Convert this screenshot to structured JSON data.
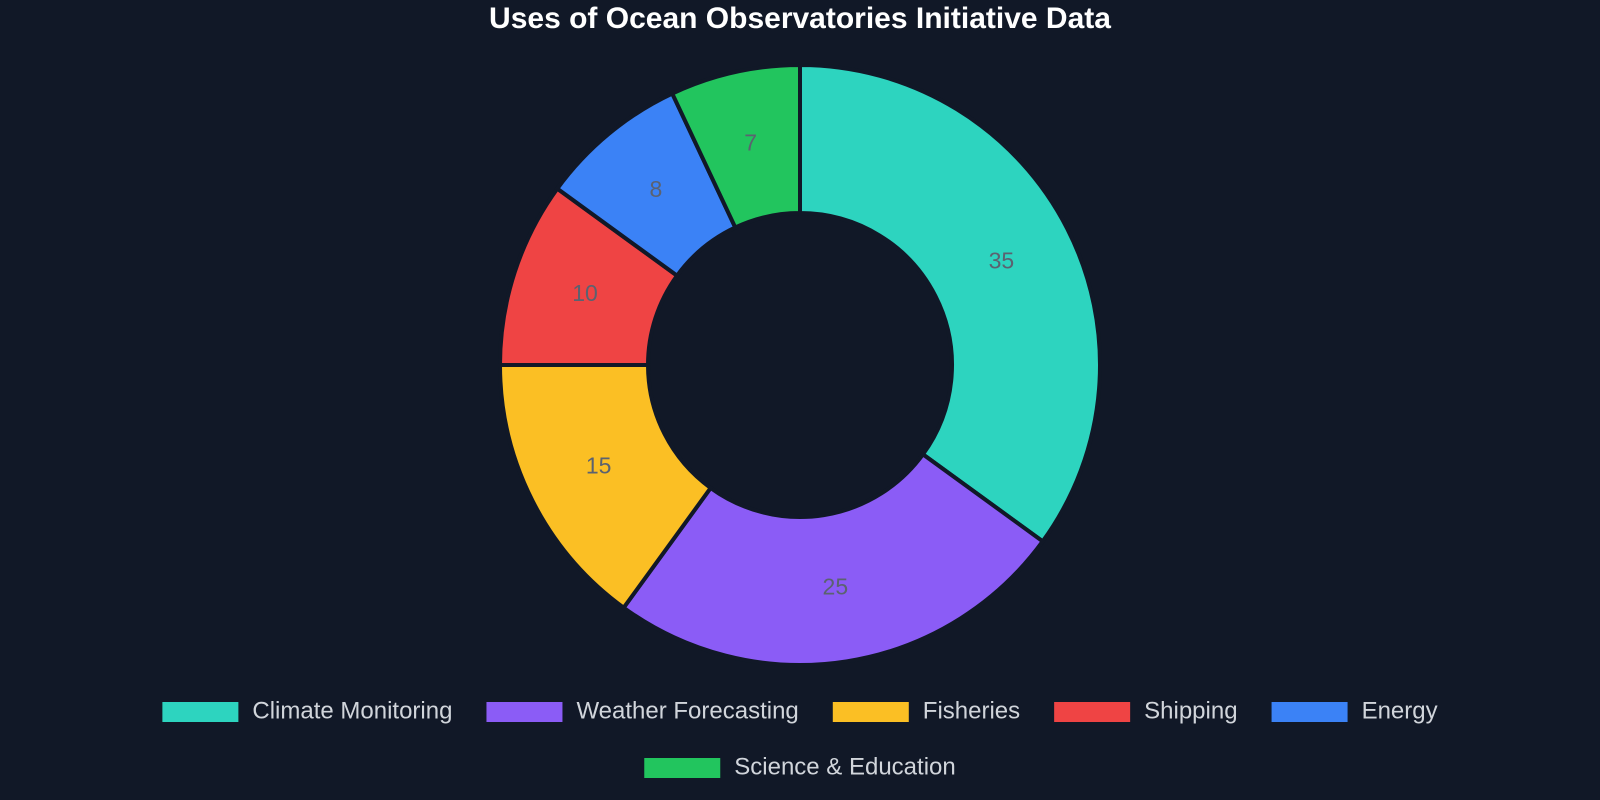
{
  "chart_data": {
    "type": "pie",
    "title": "Uses of Ocean Observatories Initiative Data",
    "categories": [
      "Climate Monitoring",
      "Weather Forecasting",
      "Fisheries",
      "Shipping",
      "Energy",
      "Science & Education"
    ],
    "values": [
      35,
      25,
      15,
      10,
      8,
      7
    ],
    "colors": [
      "#2dd4bf",
      "#8b5cf6",
      "#fbbf24",
      "#ef4444",
      "#3b82f6",
      "#22c55e"
    ],
    "legend": "bottom"
  }
}
